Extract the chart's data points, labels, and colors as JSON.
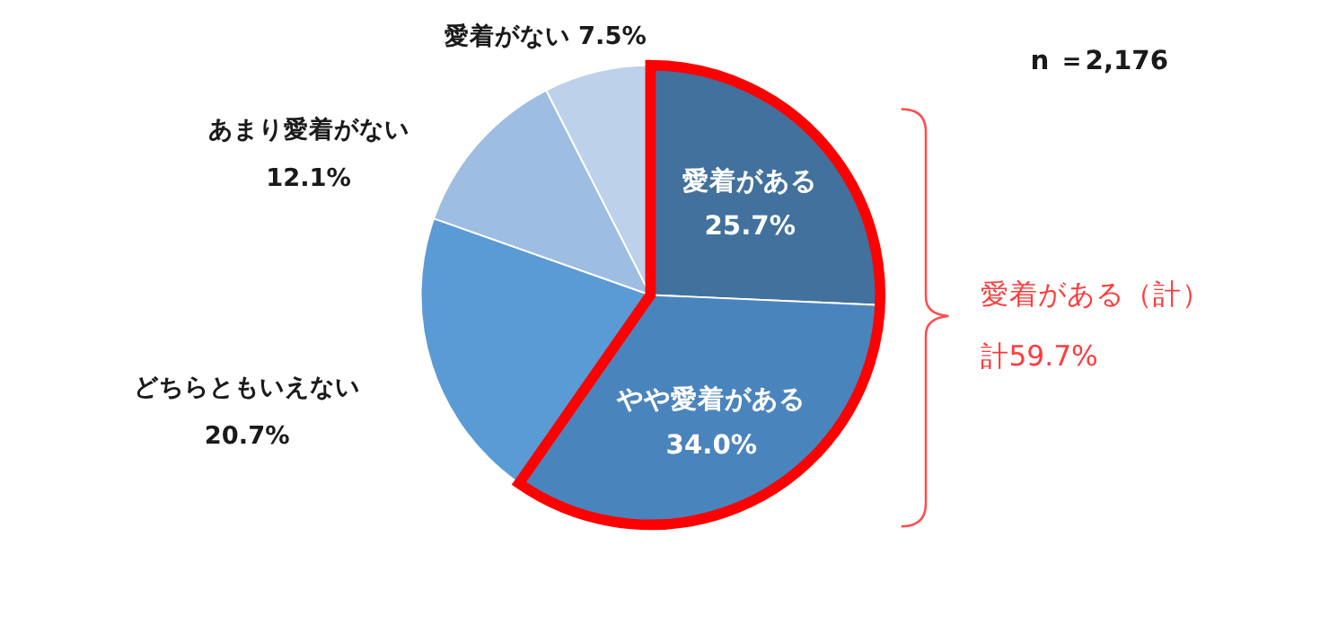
{
  "chart_data": {
    "type": "pie",
    "categories": [
      "愛着がある",
      "やや愛着がある",
      "どちらともいえない",
      "あまり愛着がない",
      "愛着がない"
    ],
    "values": [
      25.7,
      34.0,
      20.7,
      12.1,
      7.5
    ],
    "colors": [
      "#41719c",
      "#4a84bd",
      "#5b9bd5",
      "#9dbde2",
      "#bed1ea"
    ],
    "value_labels": [
      "25.7%",
      "34.0%",
      "20.7%",
      "12.1%",
      "7.5%"
    ],
    "annotations": [
      "n ＝2,176",
      "愛着がある（計）",
      "計59.7%"
    ]
  }
}
